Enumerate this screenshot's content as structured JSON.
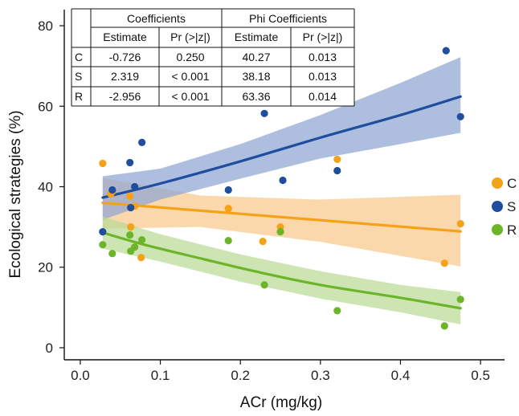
{
  "chart_data": {
    "type": "scatter",
    "xlabel": "ACr (mg/kg)",
    "ylabel": "Ecological strategies (%)",
    "xlim": [
      -0.02,
      0.53
    ],
    "ylim": [
      -3,
      84
    ],
    "xticks": [
      0.0,
      0.1,
      0.2,
      0.3,
      0.4,
      0.5
    ],
    "xtick_labels": [
      "0.0",
      "0.1",
      "0.2",
      "0.3",
      "0.4",
      "0.5"
    ],
    "yticks": [
      0,
      20,
      40,
      60,
      80
    ],
    "ytick_labels": [
      "0",
      "20",
      "40",
      "60",
      "80"
    ],
    "grid": false,
    "legend_position": "right",
    "series": [
      {
        "name": "C",
        "color": "#F5A21B",
        "band_color": "#F9C98A",
        "points": [
          [
            0.028,
            45.8
          ],
          [
            0.038,
            38.2
          ],
          [
            0.04,
            38.8
          ],
          [
            0.062,
            37.6
          ],
          [
            0.063,
            30.0
          ],
          [
            0.068,
            35.2
          ],
          [
            0.076,
            22.4
          ],
          [
            0.185,
            34.6
          ],
          [
            0.228,
            26.4
          ],
          [
            0.25,
            30.0
          ],
          [
            0.321,
            46.8
          ],
          [
            0.455,
            21.0
          ],
          [
            0.475,
            30.8
          ]
        ],
        "fit": [
          [
            0.028,
            36.0
          ],
          [
            0.475,
            28.9
          ]
        ],
        "band_upper": [
          [
            0.028,
            42.2
          ],
          [
            0.15,
            37.8
          ],
          [
            0.3,
            36.8
          ],
          [
            0.475,
            38.0
          ]
        ],
        "band_lower": [
          [
            0.028,
            29.6
          ],
          [
            0.15,
            30.0
          ],
          [
            0.3,
            26.3
          ],
          [
            0.475,
            20.2
          ]
        ]
      },
      {
        "name": "S",
        "color": "#1F4E9E",
        "band_color": "#8FA5D3",
        "points": [
          [
            0.028,
            28.8
          ],
          [
            0.04,
            39.2
          ],
          [
            0.062,
            46.0
          ],
          [
            0.063,
            34.8
          ],
          [
            0.068,
            40.0
          ],
          [
            0.077,
            51.0
          ],
          [
            0.185,
            39.2
          ],
          [
            0.23,
            58.2
          ],
          [
            0.253,
            41.6
          ],
          [
            0.321,
            44.0
          ],
          [
            0.457,
            73.8
          ],
          [
            0.475,
            57.4
          ]
        ],
        "fit": [
          [
            0.028,
            37.3
          ],
          [
            0.1,
            40.8
          ],
          [
            0.2,
            46.3
          ],
          [
            0.3,
            52.2
          ],
          [
            0.4,
            57.8
          ],
          [
            0.475,
            62.4
          ]
        ],
        "band_upper": [
          [
            0.028,
            42.6
          ],
          [
            0.1,
            44.5
          ],
          [
            0.2,
            50.6
          ],
          [
            0.3,
            57.8
          ],
          [
            0.4,
            65.8
          ],
          [
            0.475,
            72.2
          ]
        ],
        "band_lower": [
          [
            0.028,
            31.8
          ],
          [
            0.1,
            36.8
          ],
          [
            0.2,
            42.0
          ],
          [
            0.3,
            47.0
          ],
          [
            0.4,
            50.6
          ],
          [
            0.475,
            53.4
          ]
        ]
      },
      {
        "name": "R",
        "color": "#6CB52B",
        "band_color": "#B9DB94",
        "points": [
          [
            0.028,
            25.6
          ],
          [
            0.04,
            23.4
          ],
          [
            0.062,
            28.0
          ],
          [
            0.063,
            24.0
          ],
          [
            0.068,
            25.0
          ],
          [
            0.077,
            26.8
          ],
          [
            0.185,
            26.6
          ],
          [
            0.23,
            15.6
          ],
          [
            0.25,
            28.8
          ],
          [
            0.321,
            9.2
          ],
          [
            0.455,
            5.4
          ],
          [
            0.475,
            12.0
          ]
        ],
        "fit": [
          [
            0.028,
            28.6
          ],
          [
            0.08,
            25.6
          ],
          [
            0.15,
            22.2
          ],
          [
            0.22,
            18.9
          ],
          [
            0.3,
            15.6
          ],
          [
            0.4,
            12.4
          ],
          [
            0.475,
            9.8
          ]
        ],
        "band_upper": [
          [
            0.028,
            32.6
          ],
          [
            0.1,
            28.2
          ],
          [
            0.2,
            23.2
          ],
          [
            0.3,
            19.0
          ],
          [
            0.4,
            15.6
          ],
          [
            0.475,
            13.8
          ]
        ],
        "band_lower": [
          [
            0.028,
            24.6
          ],
          [
            0.1,
            21.4
          ],
          [
            0.2,
            16.4
          ],
          [
            0.3,
            12.2
          ],
          [
            0.4,
            8.8
          ],
          [
            0.475,
            5.8
          ]
        ]
      }
    ]
  },
  "table": {
    "group_headers": [
      "Coefficients",
      "Phi Coefficients"
    ],
    "sub_headers": [
      "Estimate",
      "Pr (>|z|)",
      "Estimate",
      "Pr (>|z|)"
    ],
    "rows": [
      {
        "label": "C",
        "cells": [
          "-0.726",
          "0.250",
          "40.27",
          "0.013"
        ]
      },
      {
        "label": "S",
        "cells": [
          "2.319",
          "< 0.001",
          "38.18",
          "0.013"
        ]
      },
      {
        "label": "R",
        "cells": [
          "-2.956",
          "< 0.001",
          "63.36",
          "0.014"
        ]
      }
    ]
  }
}
